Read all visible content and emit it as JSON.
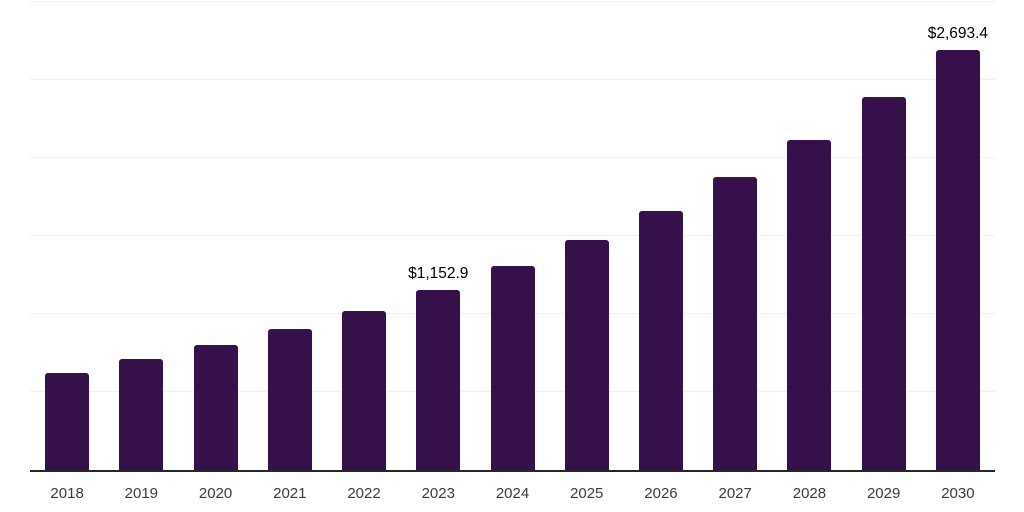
{
  "chart_data": {
    "type": "bar",
    "title": "",
    "xlabel": "",
    "ylabel": "",
    "categories": [
      "2018",
      "2019",
      "2020",
      "2021",
      "2022",
      "2023",
      "2024",
      "2025",
      "2026",
      "2027",
      "2028",
      "2029",
      "2030"
    ],
    "values": [
      625,
      711,
      800,
      905,
      1022,
      1152.9,
      1305,
      1472,
      1659,
      1881,
      2117,
      2390,
      2693.4
    ],
    "point_labels": {
      "2023": "$1,152.9",
      "2030": "$2,693.4"
    },
    "ylim": [
      0,
      3000
    ],
    "gridline_step": 500,
    "grid": "horizontal",
    "legend": "none",
    "y_tick_labels_visible": false,
    "colors": {
      "bar": "#35104A",
      "gridline": "#F0F0F0",
      "axis_line": "#262626",
      "tick_label": "#3A3A3A",
      "value_label": "#000000",
      "background": "#FFFFFF"
    }
  }
}
